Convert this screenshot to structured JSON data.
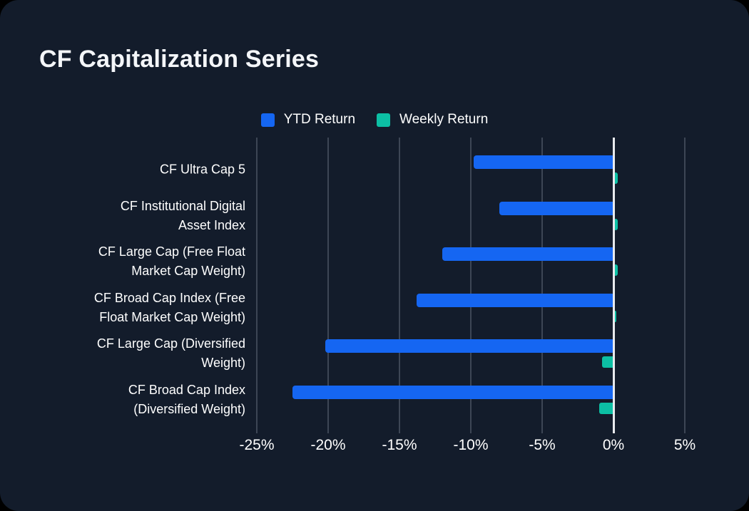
{
  "title": "CF Capitalization Series",
  "colors": {
    "background": "#131c2b",
    "page_behind": "#000000",
    "gridline": "#3d4655",
    "zero_line": "#e8eaee",
    "text": "#ffffff",
    "ytd_blue": "#1566f2",
    "weekly_teal": "#0cbfa4"
  },
  "legend": {
    "items": [
      {
        "label": "YTD Return",
        "color": "#1566f2"
      },
      {
        "label": "Weekly Return",
        "color": "#0cbfa4"
      }
    ]
  },
  "chart_data": {
    "type": "bar",
    "orientation": "horizontal",
    "title": "CF Capitalization Series",
    "unit": "%",
    "grid": "vertical-on",
    "legend_position": "top-center",
    "categories": [
      {
        "label": "CF Ultra Cap 5",
        "lines": [
          "CF Ultra Cap 5"
        ]
      },
      {
        "label": "CF Institutional Digital Asset Index",
        "lines": [
          "CF Institutional Digital",
          "Asset Index"
        ]
      },
      {
        "label": "CF Large Cap (Free Float Market Cap Weight)",
        "lines": [
          "CF Large Cap (Free Float",
          "Market Cap Weight)"
        ]
      },
      {
        "label": "CF Broad Cap Index (Free Float Market Cap Weight)",
        "lines": [
          "CF Broad Cap Index (Free",
          "Float Market Cap Weight)"
        ]
      },
      {
        "label": "CF Large Cap (Diversified Weight)",
        "lines": [
          "CF Large Cap (Diversified",
          "Weight)"
        ]
      },
      {
        "label": "CF Broad Cap Index (Diversified Weight)",
        "lines": [
          "CF Broad Cap Index",
          "(Diversified Weight)"
        ]
      }
    ],
    "series": [
      {
        "name": "YTD Return",
        "color": "#1566f2",
        "values": [
          -9.8,
          -8.0,
          -12.0,
          -13.8,
          -20.2,
          -22.5
        ]
      },
      {
        "name": "Weekly Return",
        "color": "#0cbfa4",
        "values": [
          0.2,
          0.2,
          0.2,
          0.1,
          -0.8,
          -1.0
        ]
      }
    ],
    "x_ticks": [
      {
        "value": -25,
        "label": "-25%"
      },
      {
        "value": -20,
        "label": "-20%"
      },
      {
        "value": -15,
        "label": "-15%"
      },
      {
        "value": -10,
        "label": "-10%"
      },
      {
        "value": -5,
        "label": "-5%"
      },
      {
        "value": 0,
        "label": "0%"
      },
      {
        "value": 5,
        "label": "5%"
      }
    ],
    "xlim": [
      -25.2,
      7.4
    ]
  }
}
